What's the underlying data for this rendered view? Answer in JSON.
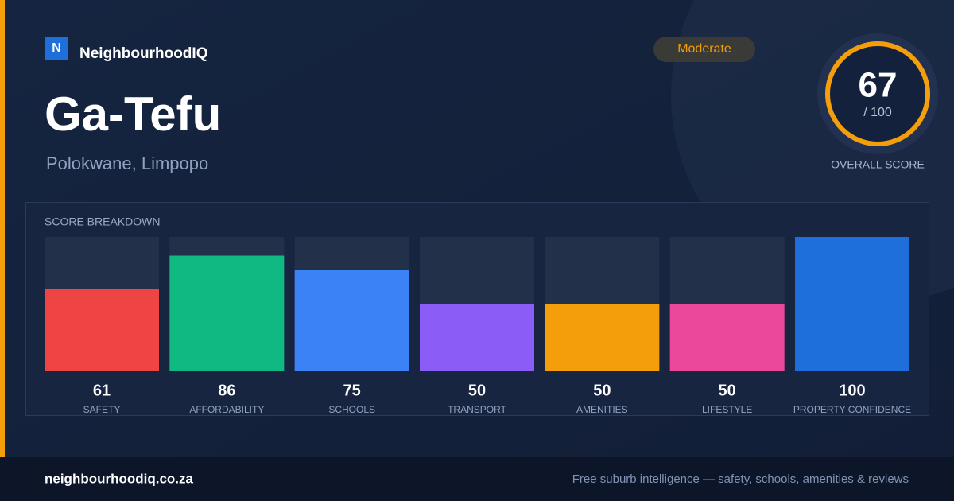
{
  "brand": {
    "logo": "N",
    "name": "NeighbourhoodIQ"
  },
  "suburb": "Ga-Tefu",
  "location": "Polokwane, Limpopo",
  "badge": "Moderate",
  "overall": {
    "score": 67,
    "max_label": "/ 100",
    "caption": "OVERALL SCORE"
  },
  "chart_data": {
    "type": "bar",
    "title": "SCORE BREAKDOWN",
    "categories": [
      "SAFETY",
      "AFFORDABILITY",
      "SCHOOLS",
      "TRANSPORT",
      "AMENITIES",
      "LIFESTYLE",
      "PROPERTY CONFIDENCE"
    ],
    "values": [
      61,
      86,
      75,
      50,
      50,
      50,
      100
    ],
    "colors": [
      "#ef4444",
      "#10b981",
      "#3b82f6",
      "#8b5cf6",
      "#f59e0b",
      "#ec4899",
      "#1e6fd9"
    ],
    "ylim": [
      0,
      100
    ]
  },
  "footer": {
    "site": "neighbourhoodiq.co.za",
    "tagline": "Free suburb intelligence — safety, schools, amenities & reviews"
  }
}
